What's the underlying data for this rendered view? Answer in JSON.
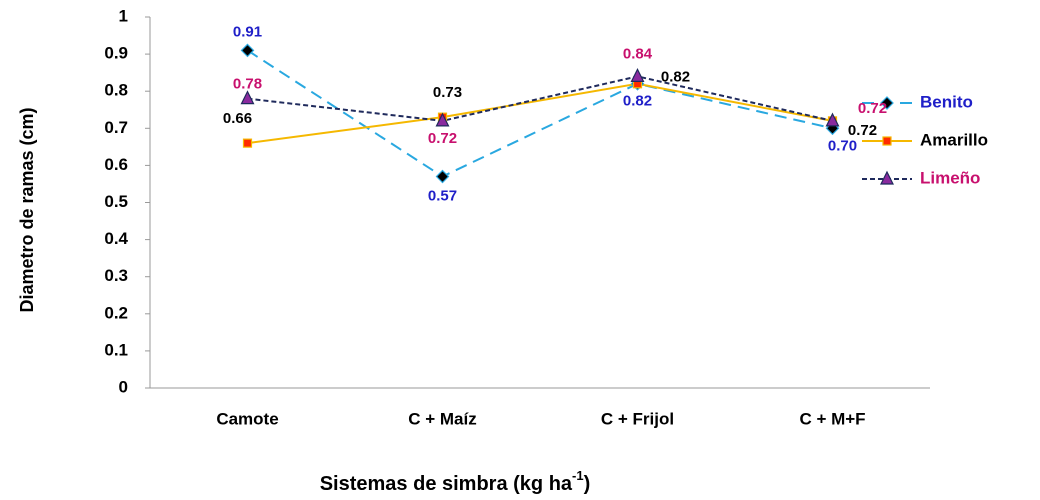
{
  "chart_data": {
    "type": "line",
    "ylabel": "Diametro  de ramas (cm)",
    "xlabel": [
      "Sistemas de simbra (kg ha",
      "-1",
      ")"
    ],
    "categories": [
      "Camote",
      "C + Maíz",
      "C + Frijol",
      "C + M+F"
    ],
    "series": [
      {
        "name": "Benito",
        "color": "#29a8e0",
        "dash": "12,7",
        "marker": "diamond",
        "marker_color": "#000000",
        "label_color": "#1f1fc8",
        "values": [
          0.91,
          0.57,
          0.82,
          0.7
        ],
        "value_labels": [
          "0.91",
          "0.57",
          "0.82",
          "0.70"
        ]
      },
      {
        "name": "Amarillo",
        "color": "#f5b800",
        "marker": "square",
        "marker_color": "#ff2a00",
        "label_color": "#000000",
        "values": [
          0.66,
          0.73,
          0.82,
          0.72
        ]
      },
      {
        "name": "Limeño",
        "color": "#1f2a5c",
        "dash": "5,3",
        "marker": "triangle",
        "marker_color": "#8a2a9e",
        "label_color": "#c8106e",
        "values": [
          0.78,
          0.72,
          0.84,
          0.72
        ]
      }
    ],
    "ylim": [
      0,
      1
    ],
    "yticks": [
      0,
      0.1,
      0.2,
      0.3,
      0.4,
      0.5,
      0.6,
      0.7,
      0.8,
      0.9,
      1
    ],
    "grid": false,
    "legend": "right"
  }
}
